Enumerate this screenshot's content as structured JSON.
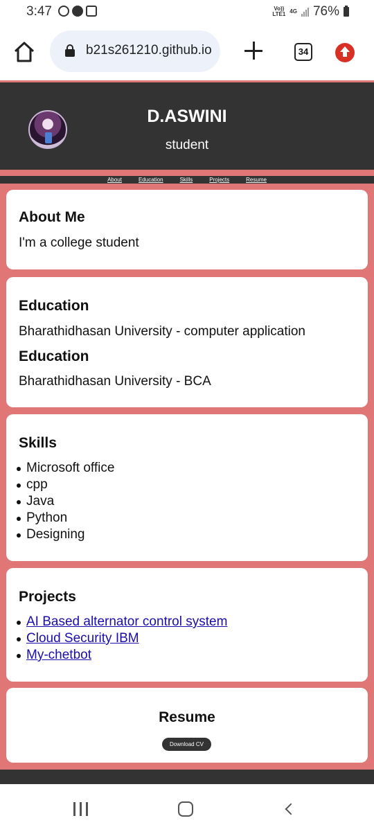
{
  "status_bar": {
    "time": "3:47",
    "network_top": "Vo))",
    "network_bottom": "LTE1",
    "net_type": "4G",
    "battery": "76%"
  },
  "browser": {
    "url": "b21s261210.github.io",
    "tab_count": "34"
  },
  "header": {
    "name": "D.ASWINI",
    "role": "student"
  },
  "nav": [
    "About",
    "Education",
    "Skills",
    "Projects",
    "Resume"
  ],
  "about": {
    "heading": "About Me",
    "text": "I'm a college student"
  },
  "education": [
    {
      "heading": "Education",
      "text": "Bharathidhasan University - computer application"
    },
    {
      "heading": "Education",
      "text": "Bharathidhasan University - BCA"
    }
  ],
  "skills": {
    "heading": "Skills",
    "items": [
      "Microsoft office",
      "cpp",
      "Java",
      "Python",
      "Designing"
    ]
  },
  "projects": {
    "heading": "Projects",
    "items": [
      "AI Based alternator control system",
      "Cloud Security IBM",
      "My-chetbot"
    ]
  },
  "resume": {
    "heading": "Resume",
    "button": "Download CV"
  },
  "colors": {
    "page_bg": "#e07676",
    "header_bg": "#333333",
    "link": "#1a0dab"
  }
}
